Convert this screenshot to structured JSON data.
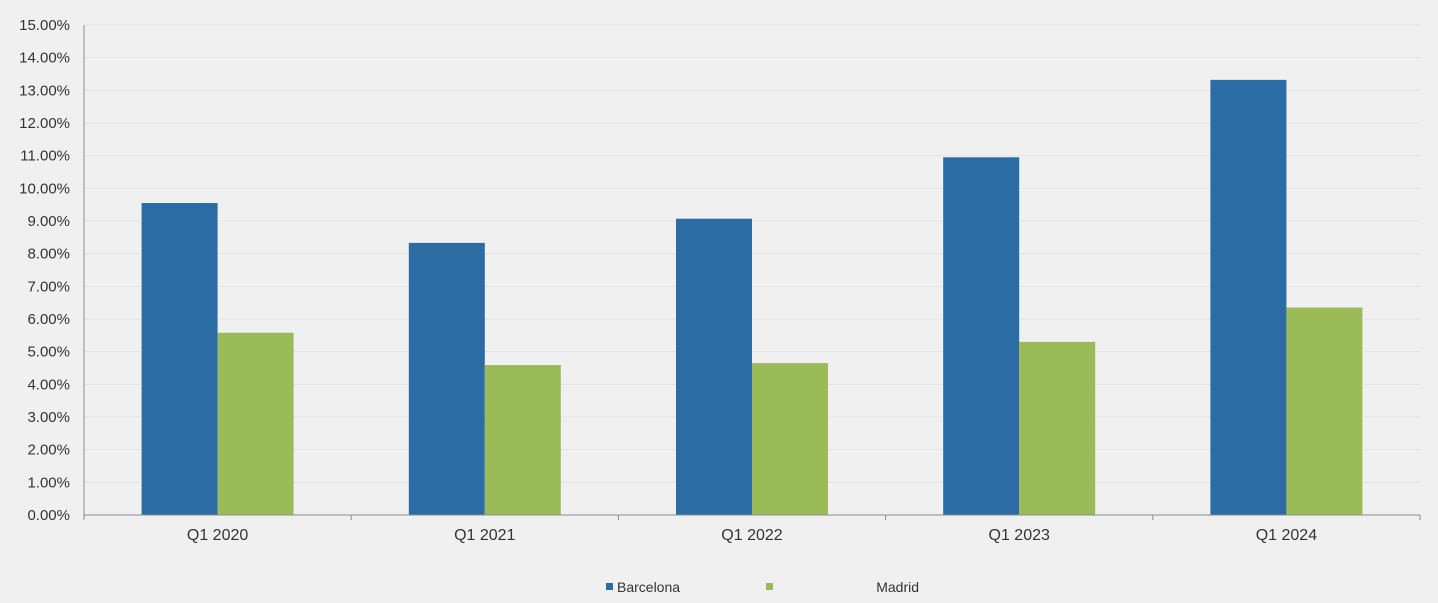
{
  "chart_data": {
    "type": "bar",
    "categories": [
      "Q1 2020",
      "Q1 2021",
      "Q1 2022",
      "Q1 2023",
      "Q1 2024"
    ],
    "series": [
      {
        "name": "Barcelona",
        "color": "#2a6ca3",
        "values": [
          9.55,
          8.33,
          9.07,
          10.95,
          13.32
        ]
      },
      {
        "name": "Madrid",
        "color": "#9bbb59",
        "values": [
          5.58,
          4.59,
          4.65,
          5.3,
          6.35
        ]
      }
    ],
    "y_ticks": [
      "0.00%",
      "1.00%",
      "2.00%",
      "3.00%",
      "4.00%",
      "5.00%",
      "6.00%",
      "7.00%",
      "8.00%",
      "9.00%",
      "10.00%",
      "11.00%",
      "12.00%",
      "13.00%",
      "14.00%",
      "15.00%"
    ],
    "ylim": [
      0,
      15
    ],
    "grid": true,
    "legend_position": "bottom"
  }
}
